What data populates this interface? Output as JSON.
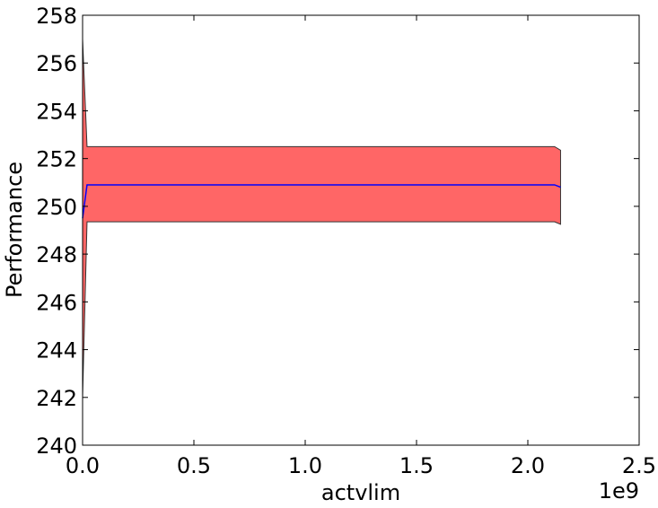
{
  "chart_data": {
    "type": "area",
    "xlabel": "actvlim",
    "ylabel": "Performance",
    "x_offset_label": "1e9",
    "xlim": [
      0,
      2.5
    ],
    "ylim": [
      240,
      258
    ],
    "x_ticks": [
      "0.0",
      "0.5",
      "1.0",
      "1.5",
      "2.0",
      "2.5"
    ],
    "y_ticks": [
      "240",
      "242",
      "244",
      "246",
      "248",
      "250",
      "252",
      "254",
      "256",
      "258"
    ],
    "grid": false,
    "legend": "none",
    "series": [
      {
        "kind": "line",
        "color": "#0000ff",
        "x": [
          0.0,
          0.02,
          2.12,
          2.147
        ],
        "y": [
          249.5,
          250.9,
          250.9,
          250.8
        ]
      },
      {
        "kind": "band",
        "color": "#ff6666",
        "x": [
          0.0,
          0.02,
          2.12,
          2.147
        ],
        "upper": [
          257.0,
          252.5,
          252.5,
          252.35
        ],
        "lower": [
          242.0,
          249.35,
          249.35,
          249.25
        ]
      }
    ]
  }
}
